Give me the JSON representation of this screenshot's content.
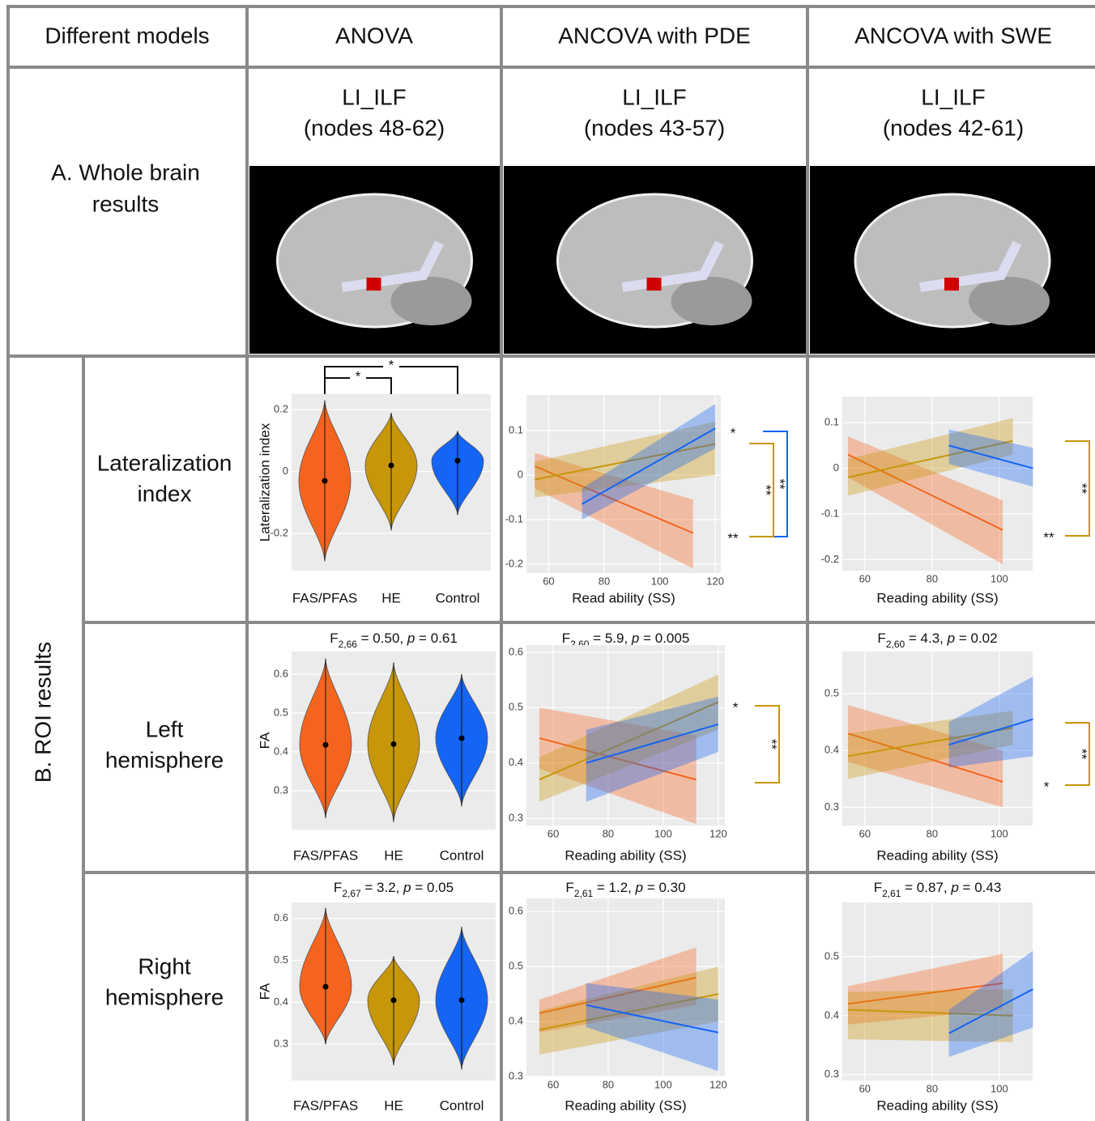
{
  "header": [
    "Different models",
    "ANOVA",
    "ANCOVA with PDE",
    "ANCOVA with SWE"
  ],
  "whole_brain": {
    "label": [
      "A. Whole brain",
      "results"
    ],
    "panels": [
      {
        "tract": "LI_ILF",
        "nodes": "(nodes 48-62)"
      },
      {
        "tract": "LI_ILF",
        "nodes": "(nodes 43-57)"
      },
      {
        "tract": "LI_ILF",
        "nodes": "(nodes 42-61)"
      }
    ]
  },
  "roi": {
    "label": "B. ROI results",
    "rows": [
      {
        "label": [
          "Lateralization",
          "index"
        ],
        "panels": [
          {
            "type": "violin",
            "ylabel": "Lateralization index",
            "categories": [
              "FAS/PFAS",
              "HE",
              "Control"
            ],
            "colors": [
              "#f5641e",
              "#c8960a",
              "#1464f5"
            ],
            "maxs": [
              0.23,
              0.19,
              0.13
            ],
            "medians": [
              -0.03,
              0.02,
              0.035
            ],
            "mins": [
              -0.29,
              -0.19,
              -0.14
            ],
            "ylim": [
              -0.32,
              0.25
            ],
            "yticks": [
              0.2,
              0,
              -0.2
            ],
            "brackets": [
              "*",
              "*"
            ]
          },
          {
            "type": "scatter",
            "xlabel": "Read ability (SS)",
            "xlim": [
              52,
              122
            ],
            "xticks": [
              60,
              80,
              100,
              120
            ],
            "ylim": [
              -0.22,
              0.18
            ],
            "yticks": [
              0.1,
              0,
              -0.1,
              -0.2
            ],
            "series": [
              {
                "color": "#f5641e",
                "x": [
                  55,
                  112
                ],
                "y": [
                  0.02,
                  -0.13
                ],
                "lower": [
                  -0.03,
                  -0.21
                ],
                "upper": [
                  0.05,
                  -0.055
                ]
              },
              {
                "color": "#c8960a",
                "x": [
                  55,
                  120
                ],
                "y": [
                  -0.01,
                  0.07
                ],
                "lower": [
                  -0.05,
                  0
                ],
                "upper": [
                  0.03,
                  0.12
                ]
              },
              {
                "color": "#1464f5",
                "x": [
                  72,
                  120
                ],
                "y": [
                  -0.065,
                  0.105
                ],
                "lower": [
                  -0.1,
                  0.06
                ],
                "upper": [
                  -0.03,
                  0.16
                ]
              }
            ],
            "markers": [
              {
                "label": "*",
                "color": "#1464f5"
              },
              {
                "label": "**",
                "color": "#ee2020"
              }
            ],
            "brackets": [
              {
                "label": "**",
                "color": "#1464f5"
              },
              {
                "label": "**",
                "color": "#c8960a"
              }
            ]
          },
          {
            "type": "scatter",
            "xlabel": "Reading ability (SS)",
            "xlim": [
              53.3,
              109.9
            ],
            "xticks": [
              60,
              80,
              100
            ],
            "ylim": [
              -0.224,
              0.157
            ],
            "yticks": [
              0.1,
              0,
              -0.1,
              -0.2
            ],
            "series": [
              {
                "color": "#f5641e",
                "x": [
                  55,
                  101
                ],
                "y": [
                  0.03,
                  -0.135
                ],
                "lower": [
                  -0.02,
                  -0.21
                ],
                "upper": [
                  0.07,
                  -0.07
                ]
              },
              {
                "color": "#c8960a",
                "x": [
                  55,
                  104
                ],
                "y": [
                  -0.02,
                  0.06
                ],
                "lower": [
                  -0.06,
                  0.03
                ],
                "upper": [
                  0.02,
                  0.11
                ]
              },
              {
                "color": "#1464f5",
                "x": [
                  85,
                  110
                ],
                "y": [
                  0.05,
                  0
                ],
                "lower": [
                  0.01,
                  -0.04
                ],
                "upper": [
                  0.085,
                  0.045
                ]
              }
            ],
            "markers": [
              {
                "label": "**",
                "color": "#ee2020"
              }
            ],
            "brackets": [
              {
                "label": "**",
                "color": "#c8960a"
              }
            ]
          }
        ]
      },
      {
        "label": [
          "Left",
          "hemisphere"
        ],
        "panels": [
          {
            "type": "violin",
            "stat": {
              "f": "F",
              "df": "2,66",
              "f_value": " = 0.50, ",
              "p": "p",
              "p_value": " = 0.61"
            },
            "ylabel": "FA",
            "categories": [
              "FAS/PFAS",
              "HE",
              "Control"
            ],
            "colors": [
              "#f5641e",
              "#c8960a",
              "#1464f5"
            ],
            "maxs": [
              0.64,
              0.63,
              0.6
            ],
            "medians": [
              0.418,
              0.42,
              0.435
            ],
            "mins": [
              0.23,
              0.22,
              0.26
            ],
            "ylim": [
              0.2,
              0.658
            ],
            "yticks": [
              0.6,
              0.5,
              0.4,
              0.3
            ]
          },
          {
            "type": "scatter",
            "stat": {
              "f": "F",
              "df": "2,60",
              "f_value": " = 5.9, ",
              "p": "p",
              "p_value": " = 0.005"
            },
            "xlabel": "Reading ability (SS)",
            "xlim": [
              50.3,
              122.4
            ],
            "xticks": [
              60,
              80,
              100,
              120
            ],
            "ylim": [
              0.287,
              0.613
            ],
            "yticks": [
              0.6,
              0.5,
              0.4,
              0.3
            ],
            "series": [
              {
                "color": "#f5641e",
                "x": [
                  55,
                  112
                ],
                "y": [
                  0.445,
                  0.37
                ],
                "lower": [
                  0.39,
                  0.29
                ],
                "upper": [
                  0.5,
                  0.45
                ]
              },
              {
                "color": "#c8960a",
                "x": [
                  55,
                  120
                ],
                "y": [
                  0.37,
                  0.51
                ],
                "lower": [
                  0.33,
                  0.46
                ],
                "upper": [
                  0.41,
                  0.56
                ]
              },
              {
                "color": "#1464f5",
                "x": [
                  72,
                  120
                ],
                "y": [
                  0.4,
                  0.47
                ],
                "lower": [
                  0.33,
                  0.42
                ],
                "upper": [
                  0.46,
                  0.52
                ]
              }
            ],
            "markers": [
              {
                "label": "*",
                "color": "#c8960a"
              }
            ],
            "brackets": [
              {
                "label": "**",
                "color": "#c8960a"
              }
            ]
          },
          {
            "type": "scatter",
            "stat": {
              "f": "F",
              "df": "2,60",
              "f_value": " = 4.3, ",
              "p": "p",
              "p_value": " = 0.02"
            },
            "xlabel": "Reading ability (SS)",
            "xlim": [
              53.3,
              109.9
            ],
            "xticks": [
              60,
              80,
              100
            ],
            "ylim": [
              0.268,
              0.574
            ],
            "yticks": [
              0.5,
              0.4,
              0.3
            ],
            "series": [
              {
                "color": "#f5641e",
                "x": [
                  55,
                  101
                ],
                "y": [
                  0.43,
                  0.345
                ],
                "lower": [
                  0.38,
                  0.3
                ],
                "upper": [
                  0.48,
                  0.4
                ]
              },
              {
                "color": "#c8960a",
                "x": [
                  55,
                  104
                ],
                "y": [
                  0.39,
                  0.44
                ],
                "lower": [
                  0.35,
                  0.41
                ],
                "upper": [
                  0.43,
                  0.47
                ]
              },
              {
                "color": "#1464f5",
                "x": [
                  85,
                  110
                ],
                "y": [
                  0.41,
                  0.455
                ],
                "lower": [
                  0.37,
                  0.39
                ],
                "upper": [
                  0.45,
                  0.53
                ]
              }
            ],
            "markers": [
              {
                "label": "*",
                "color": "#ee2020"
              }
            ],
            "brackets": [
              {
                "label": "**",
                "color": "#c8960a"
              }
            ]
          }
        ]
      },
      {
        "label": [
          "Right",
          "hemisphere"
        ],
        "panels": [
          {
            "type": "violin",
            "stat": {
              "f": "F",
              "df": "2,67",
              "f_value": " = 3.2, ",
              "p": "p",
              "p_value": " = 0.05"
            },
            "ylabel": "FA",
            "categories": [
              "FAS/PFAS",
              "HE",
              "Control"
            ],
            "colors": [
              "#f5641e",
              "#c8960a",
              "#1464f5"
            ],
            "maxs": [
              0.625,
              0.51,
              0.58
            ],
            "medians": [
              0.437,
              0.405,
              0.405
            ],
            "mins": [
              0.3,
              0.25,
              0.24
            ],
            "ylim": [
              0.2135,
              0.638
            ],
            "yticks": [
              0.6,
              0.5,
              0.4,
              0.3
            ]
          },
          {
            "type": "scatter",
            "stat": {
              "f": "F",
              "df": "2,61",
              "f_value": " = 1.2, ",
              "p": "p",
              "p_value": " = 0.30"
            },
            "xlabel": "Reading ability (SS)",
            "xlim": [
              50.3,
              122.4
            ],
            "xticks": [
              60,
              80,
              100,
              120
            ],
            "ylim": [
              0.3,
              0.624
            ],
            "yticks": [
              0.6,
              0.5,
              0.4,
              0.3
            ],
            "series": [
              {
                "color": "#f5641e",
                "x": [
                  55,
                  112
                ],
                "y": [
                  0.415,
                  0.48
                ],
                "lower": [
                  0.38,
                  0.43
                ],
                "upper": [
                  0.44,
                  0.535
                ]
              },
              {
                "color": "#c8960a",
                "x": [
                  55,
                  120
                ],
                "y": [
                  0.385,
                  0.45
                ],
                "lower": [
                  0.34,
                  0.4
                ],
                "upper": [
                  0.42,
                  0.5
                ]
              },
              {
                "color": "#1464f5",
                "x": [
                  72,
                  120
                ],
                "y": [
                  0.43,
                  0.38
                ],
                "lower": [
                  0.39,
                  0.31
                ],
                "upper": [
                  0.47,
                  0.44
                ]
              }
            ]
          },
          {
            "type": "scatter",
            "stat": {
              "f": "F",
              "df": "2,61",
              "f_value": " = 0.87, ",
              "p": "p",
              "p_value": " = 0.43"
            },
            "xlabel": "Reading ability (SS)",
            "xlim": [
              53.3,
              109.9
            ],
            "xticks": [
              60,
              80,
              100
            ],
            "ylim": [
              0.29,
              0.592
            ],
            "yticks": [
              0.5,
              0.4,
              0.3
            ],
            "series": [
              {
                "color": "#f5641e",
                "x": [
                  55,
                  101
                ],
                "y": [
                  0.42,
                  0.455
                ],
                "lower": [
                  0.385,
                  0.41
                ],
                "upper": [
                  0.45,
                  0.505
                ]
              },
              {
                "color": "#c8960a",
                "x": [
                  55,
                  104
                ],
                "y": [
                  0.41,
                  0.4
                ],
                "lower": [
                  0.36,
                  0.355
                ],
                "upper": [
                  0.44,
                  0.445
                ]
              },
              {
                "color": "#1464f5",
                "x": [
                  85,
                  110
                ],
                "y": [
                  0.37,
                  0.445
                ],
                "lower": [
                  0.33,
                  0.38
                ],
                "upper": [
                  0.41,
                  0.51
                ]
              }
            ]
          }
        ]
      }
    ]
  }
}
